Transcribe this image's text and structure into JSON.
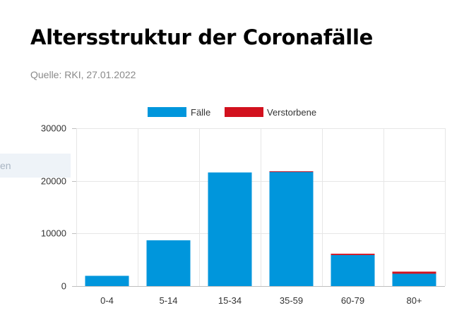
{
  "page": {
    "title": "Altersstruktur der Coronafälle",
    "source": "Quelle: RKI, 27.01.2022",
    "side_tab_text": "en"
  },
  "chart_data": {
    "type": "bar",
    "stacked": true,
    "categories": [
      "0-4",
      "5-14",
      "15-34",
      "35-59",
      "60-79",
      "80+"
    ],
    "series": [
      {
        "name": "Fälle",
        "color": "#0096dc",
        "values": [
          1950,
          8700,
          21600,
          21800,
          5900,
          2350
        ]
      },
      {
        "name": "Verstorbene",
        "color": "#d2111e",
        "values": [
          0,
          0,
          0,
          10,
          250,
          400
        ]
      }
    ],
    "ylim": [
      0,
      30000
    ],
    "yticks": [
      0,
      10000,
      20000,
      30000
    ],
    "grid": true,
    "legend": "top-center"
  }
}
